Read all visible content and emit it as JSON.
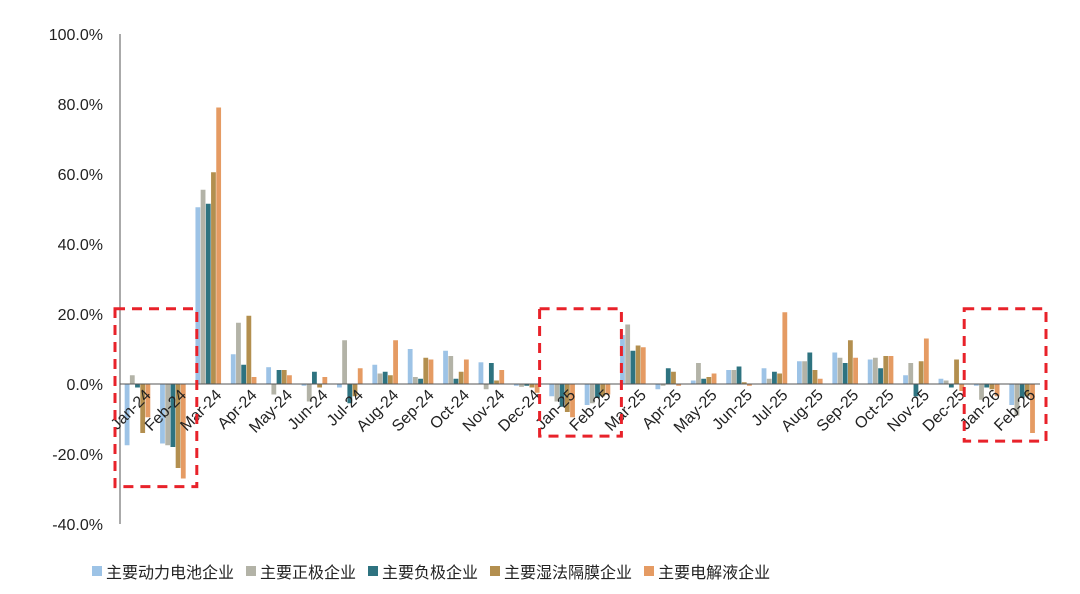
{
  "chart_data": {
    "type": "bar",
    "title": "",
    "xlabel": "",
    "ylabel": "",
    "ylim": [
      -40,
      100
    ],
    "yticks": [
      "100.0%",
      "80.0%",
      "60.0%",
      "40.0%",
      "20.0%",
      "0.0%",
      "-20.0%",
      "-40.0%"
    ],
    "ytick_values": [
      100,
      80,
      60,
      40,
      20,
      0,
      -20,
      -40
    ],
    "grid": false,
    "legend_position": "bottom",
    "categories": [
      "Jan-24",
      "Feb-24",
      "Mar-24",
      "Apr-24",
      "May-24",
      "Jun-24",
      "Jul-24",
      "Aug-24",
      "Sep-24",
      "Oct-24",
      "Nov-24",
      "Dec-24",
      "Jan-25",
      "Feb-25",
      "Mar-25",
      "Apr-25",
      "May-25",
      "Jun-25",
      "Jul-25",
      "Aug-25",
      "Sep-25",
      "Oct-25",
      "Nov-25",
      "Dec-25",
      "Jan-26",
      "Feb-26"
    ],
    "series": [
      {
        "name": "主要动力电池企业",
        "color": "#9dc3e6",
        "values": [
          -17.5,
          -17,
          50.5,
          8.5,
          4.8,
          -0.5,
          -1,
          5.5,
          10,
          9.5,
          6.2,
          -0.5,
          -3.5,
          -6,
          14,
          -1.5,
          1,
          4,
          4.5,
          6.5,
          9,
          7,
          2.5,
          1.5,
          -0.5,
          -6
        ]
      },
      {
        "name": "主要正极企业",
        "color": "#b3b3a7",
        "values": [
          2.5,
          -17.5,
          55.5,
          17.5,
          -3,
          -5,
          12.5,
          3,
          2,
          8,
          -1.5,
          -0.8,
          -5,
          -5.5,
          17,
          -0.5,
          6,
          4,
          1.5,
          6.5,
          7.5,
          7.5,
          6,
          1,
          -4.5,
          -9
        ]
      },
      {
        "name": "主要负极企业",
        "color": "#2e7380",
        "values": [
          -1,
          -18,
          51.5,
          5.5,
          4,
          3.5,
          -5.5,
          3.5,
          1.5,
          1.5,
          6,
          -0.5,
          -6.5,
          -4,
          9.5,
          4.5,
          1.5,
          5,
          3.5,
          9,
          6,
          4.5,
          -3.5,
          -1,
          -1,
          -4
        ]
      },
      {
        "name": "主要湿法隔膜企业",
        "color": "#b38f4f",
        "values": [
          -14,
          -24,
          60.5,
          19.5,
          4,
          -1,
          -3.5,
          2.5,
          7.5,
          3.5,
          1,
          -1,
          -8,
          -3.5,
          11,
          3.5,
          2,
          0.5,
          3,
          4,
          12.5,
          8,
          6.5,
          7,
          -1.5,
          -3.5
        ]
      },
      {
        "name": "主要电解液企业",
        "color": "#e59b63",
        "values": [
          -9.5,
          -27,
          79,
          2,
          2.5,
          2,
          4.5,
          12.5,
          7,
          7,
          4,
          -2.5,
          -9.5,
          -3,
          10.5,
          -0.5,
          3,
          -0.5,
          20.5,
          1.5,
          7.5,
          8,
          13,
          -2,
          -3.5,
          -14
        ]
      }
    ]
  },
  "annotations": [
    {
      "label": "highlight-box-jan-feb-2024",
      "categories": [
        "Jan-24",
        "Feb-24"
      ]
    },
    {
      "label": "highlight-box-jan-feb-2025",
      "categories": [
        "Jan-25",
        "Feb-25"
      ]
    },
    {
      "label": "highlight-box-jan-feb-2026",
      "categories": [
        "Jan-26",
        "Feb-26"
      ]
    }
  ],
  "colors": {
    "highlight_box": "#e8222a",
    "axis": "#555555"
  }
}
